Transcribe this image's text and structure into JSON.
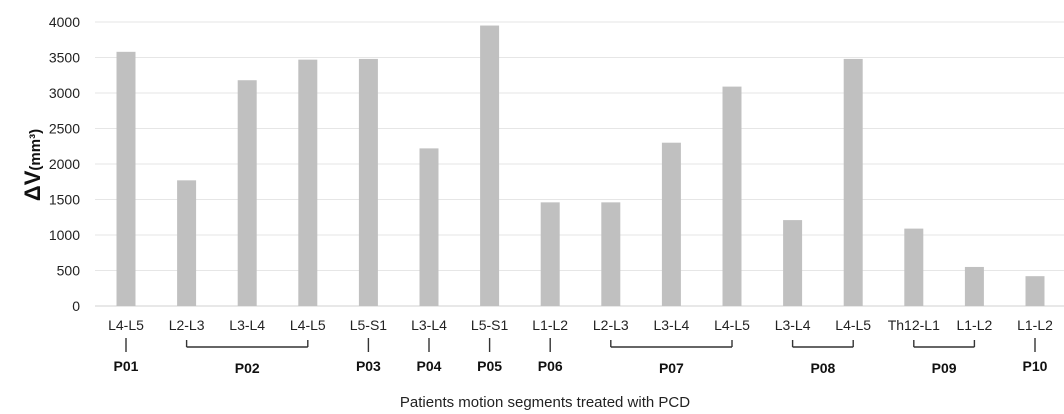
{
  "chart_data": {
    "type": "bar",
    "title": "",
    "ylabel": {
      "main": "ΔV",
      "unit": "(mm³)"
    },
    "xlabel": "Patients motion segments treated with PCD",
    "ylim": [
      0,
      4000
    ],
    "yticks": [
      0,
      500,
      1000,
      1500,
      2000,
      2500,
      3000,
      3500,
      4000
    ],
    "grid": true,
    "bar_color": "#c0c0c0",
    "categories": [
      "L4-L5",
      "L2-L3",
      "L3-L4",
      "L4-L5",
      "L5-S1",
      "L3-L4",
      "L5-S1",
      "L1-L2",
      "L2-L3",
      "L3-L4",
      "L4-L5",
      "L3-L4",
      "L4-L5",
      "Th12-L1",
      "L1-L2",
      "L1-L2"
    ],
    "values": [
      3580,
      1770,
      3180,
      3470,
      3480,
      2220,
      3950,
      1460,
      1460,
      2300,
      3090,
      1210,
      3480,
      1090,
      550,
      420
    ],
    "groups": [
      {
        "label": "P01",
        "start": 0,
        "end": 0
      },
      {
        "label": "P02",
        "start": 1,
        "end": 3
      },
      {
        "label": "P03",
        "start": 4,
        "end": 4
      },
      {
        "label": "P04",
        "start": 5,
        "end": 5
      },
      {
        "label": "P05",
        "start": 6,
        "end": 6
      },
      {
        "label": "P06",
        "start": 7,
        "end": 7
      },
      {
        "label": "P07",
        "start": 8,
        "end": 10
      },
      {
        "label": "P08",
        "start": 11,
        "end": 12
      },
      {
        "label": "P09",
        "start": 13,
        "end": 14
      },
      {
        "label": "P10",
        "start": 15,
        "end": 15
      }
    ]
  }
}
